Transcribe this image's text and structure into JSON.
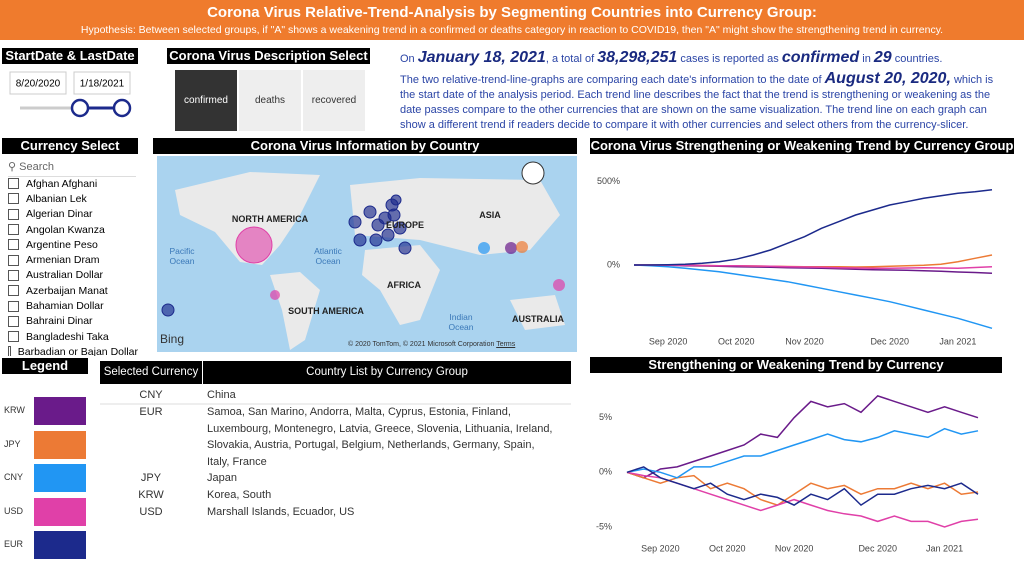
{
  "header": {
    "title": "Corona Virus Relative-Trend-Analysis by Segmenting Countries into Currency Group:",
    "subtitle": "Hypothesis: Between selected groups, if \"A\" shows a weakening trend in a confirmed or deaths category in reaction to COVID19, then \"A\" might show the strengthening trend in currency."
  },
  "date_panel": {
    "title": "StartDate & LastDate",
    "start": "8/20/2020",
    "end": "1/18/2021"
  },
  "description_select": {
    "title": "Corona Virus Description Select",
    "options": [
      "confirmed",
      "deaths",
      "recovered"
    ],
    "selected": 0
  },
  "summary": {
    "paragraphs": [
      [
        {
          "text": "On ",
          "emphasis": false
        },
        {
          "text": "January 18, 2021",
          "emphasis": true
        },
        {
          "text": ", a total of ",
          "emphasis": false
        },
        {
          "text": "38,298,251",
          "emphasis": true
        },
        {
          "text": " cases is reported as ",
          "emphasis": false
        },
        {
          "text": "confirmed",
          "emphasis": true
        },
        {
          "text": " in ",
          "emphasis": false
        },
        {
          "text": "29",
          "emphasis": true
        },
        {
          "text": " countries.",
          "emphasis": false
        }
      ],
      [
        {
          "text": "The two relative-trend-line-graphs are comparing each date's information to the date of ",
          "emphasis": false
        },
        {
          "text": "August 20, 2020,",
          "emphasis": true
        },
        {
          "text": " which is the start date of the analysis period. Each trend line describes the fact that the trend is strengthening or weakening as the date passes compare to the other currencies that are shown on the same visualization. The trend line on each graph can show a different trend if readers decide to compare it with other currencies and select others from the currency-slicer.",
          "emphasis": false
        }
      ]
    ]
  },
  "currency_select": {
    "title": "Currency Select",
    "search": "Search",
    "items": [
      "Afghan Afghani",
      "Albanian Lek",
      "Algerian Dinar",
      "Angolan Kwanza",
      "Argentine Peso",
      "Armenian Dram",
      "Australian Dollar",
      "Azerbaijan Manat",
      "Bahamian Dollar",
      "Bahraini Dinar",
      "Bangladeshi Taka",
      "Barbadian or Bajan Dollar"
    ]
  },
  "map": {
    "title": "Corona Virus Information by Country",
    "labels": [
      "NORTH AMERICA",
      "EUROPE",
      "ASIA",
      "Pacific Ocean",
      "Atlantic Ocean",
      "AFRICA",
      "SOUTH AMERICA",
      "Indian Ocean",
      "AUSTRALIA"
    ],
    "logo": "Bing",
    "credits": "© 2020 TomTom, © 2021 Microsoft Corporation",
    "terms": "Terms"
  },
  "legend": {
    "title": "Legend"
  },
  "table": {
    "headers": [
      "Selected Currency",
      "Country List by Currency Group"
    ],
    "rows": [
      [
        "CNY",
        "China"
      ],
      [
        "EUR",
        "Samoa, San Marino, Andorra, Malta, Cyprus, Estonia, Finland, Luxembourg, Montenegro, Latvia, Greece, Slovenia, Lithuania, Ireland, Slovakia, Austria, Portugal, Belgium, Netherlands, Germany, Spain, Italy, France"
      ],
      [
        "JPY",
        "Japan"
      ],
      [
        "KRW",
        "Korea, South"
      ],
      [
        "USD",
        "Marshall Islands, Ecuador, US"
      ]
    ]
  },
  "chart_data": [
    {
      "type": "line",
      "title": "Corona Virus Strengthening or Weakening Trend by Currency Group",
      "categories": [
        null,
        null,
        "Sep 2020",
        null,
        null,
        null,
        "Oct 2020",
        null,
        null,
        null,
        "Nov 2020",
        null,
        null,
        null,
        null,
        "Dec 2020",
        null,
        null,
        null,
        "Jan 2021",
        null,
        null
      ],
      "series": [
        {
          "name": "KRW",
          "color": "#6a1b8a",
          "values": [
            0,
            0,
            -2,
            -4,
            -6,
            -8,
            -10,
            -12,
            -14,
            -16,
            -18,
            -20,
            -22,
            -25,
            -28,
            -30,
            -32,
            -35,
            -38,
            -42,
            -45,
            -50
          ]
        },
        {
          "name": "JPY",
          "color": "#ec7a35",
          "values": [
            0,
            0,
            0,
            -2,
            -3,
            -4,
            -5,
            -6,
            -8,
            -9,
            -10,
            -10,
            -10,
            -12,
            -10,
            -8,
            -5,
            -2,
            5,
            20,
            40,
            60
          ]
        },
        {
          "name": "CNY",
          "color": "#2196f3",
          "values": [
            0,
            -5,
            -10,
            -20,
            -30,
            -40,
            -55,
            -70,
            -85,
            -100,
            -120,
            -140,
            -160,
            -180,
            -200,
            -220,
            -245,
            -270,
            -295,
            -320,
            -350,
            -380
          ]
        },
        {
          "name": "USD",
          "color": "#e040a8",
          "values": [
            0,
            0,
            -1,
            -2,
            -3,
            -4,
            -5,
            -6,
            -8,
            -10,
            -12,
            -14,
            -16,
            -18,
            -20,
            -20,
            -18,
            -16,
            -18,
            -20,
            -15,
            -10
          ]
        },
        {
          "name": "EUR",
          "color": "#1c2a8c",
          "values": [
            0,
            0,
            2,
            5,
            10,
            20,
            35,
            60,
            90,
            130,
            170,
            220,
            260,
            300,
            330,
            360,
            380,
            400,
            415,
            430,
            440,
            452
          ]
        }
      ],
      "ylim": [
        -390,
        600
      ],
      "yticks": [
        {
          "value": 500,
          "label": "500%"
        },
        {
          "value": 0,
          "label": "0%"
        }
      ],
      "grid": false
    },
    {
      "type": "line",
      "title": "Strengthening or Weakening Trend by Currency",
      "categories": [
        null,
        null,
        "Sep 2020",
        null,
        null,
        null,
        "Oct 2020",
        null,
        null,
        null,
        "Nov 2020",
        null,
        null,
        null,
        null,
        "Dec 2020",
        null,
        null,
        null,
        "Jan 2021",
        null,
        null
      ],
      "series": [
        {
          "name": "KRW",
          "color": "#6a1b8a",
          "values": [
            0,
            -0.5,
            0.3,
            0.5,
            1,
            1.5,
            2,
            2.5,
            3.5,
            3.2,
            5,
            6.5,
            6,
            6.3,
            5.5,
            7,
            6.5,
            6,
            5.5,
            6,
            5.5,
            5
          ]
        },
        {
          "name": "JPY",
          "color": "#ec7a35",
          "values": [
            0,
            -0.5,
            -1,
            -0.5,
            -0.3,
            -1.5,
            -1,
            -1.5,
            -2.5,
            -3,
            -2,
            -1,
            -1.5,
            -1.2,
            -2,
            -1.5,
            -1.5,
            -1,
            -1.5,
            -1,
            -2,
            -1.8
          ]
        },
        {
          "name": "CNY",
          "color": "#2196f3",
          "values": [
            0,
            0.3,
            0,
            -0.5,
            0.5,
            0.5,
            1,
            1.5,
            1.5,
            2,
            2.5,
            3,
            3.5,
            3,
            2.8,
            3.2,
            3.8,
            3.5,
            3.2,
            4,
            3.5,
            3.8
          ]
        },
        {
          "name": "USD",
          "color": "#e040a8",
          "values": [
            0,
            -0.3,
            -0.5,
            -1,
            -1.5,
            -2,
            -2.5,
            -3,
            -3.5,
            -3,
            -2.5,
            -3,
            -3.5,
            -3.8,
            -4,
            -4.5,
            -4,
            -4.5,
            -4.5,
            -5,
            -4.5,
            -4.3
          ]
        },
        {
          "name": "EUR",
          "color": "#1c2a8c",
          "values": [
            0,
            0.5,
            -0.5,
            -1,
            -1.5,
            -1,
            -2,
            -2.5,
            -2,
            -2.3,
            -3,
            -2,
            -2.5,
            -1.5,
            -3,
            -2,
            -2,
            -1.5,
            -1.2,
            -1.5,
            -1,
            -2
          ]
        }
      ],
      "ylim": [
        -6.2,
        8
      ],
      "yticks": [
        {
          "value": 5,
          "label": "5%"
        },
        {
          "value": 0,
          "label": "0%"
        },
        {
          "value": -5,
          "label": "-5%"
        }
      ],
      "grid": false
    }
  ]
}
